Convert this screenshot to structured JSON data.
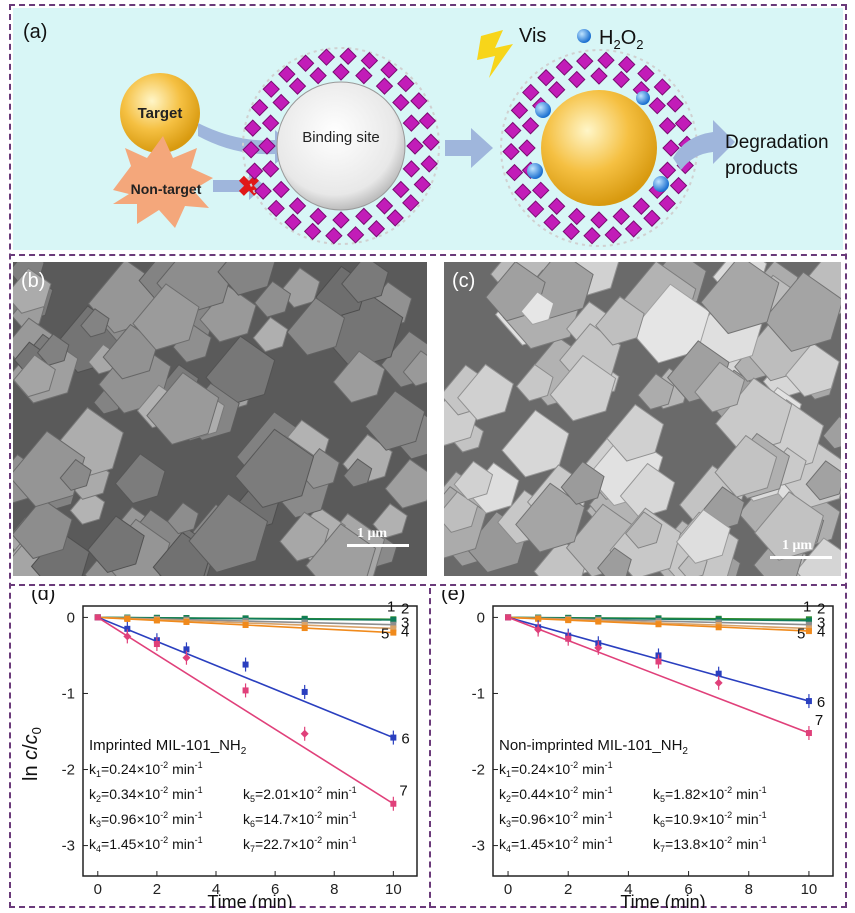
{
  "panel_a": {
    "label": "(a)",
    "target": "Target",
    "non_target": "Non-target",
    "binding_site": "Binding site",
    "vis": "Vis",
    "h2o2": "H",
    "h2o2_sub": "2",
    "h2o2_tail": "O",
    "h2o2_sub2": "2",
    "products_line1": "Degradation",
    "products_line2": "products",
    "colors": {
      "bg": "#d8f6f6",
      "mof": "#c21cb8",
      "target": "#f5c042",
      "nontarget": "#f4a77b",
      "arrow": "#9fb6dc"
    }
  },
  "panel_b": {
    "label": "(b)",
    "scale": "1 μm"
  },
  "panel_c": {
    "label": "(c)",
    "scale": "1 μm"
  },
  "chart_data": [
    {
      "type": "scatter",
      "panel": "(d)",
      "ylabel": "ln c/c0",
      "xlabel": "Time (min)",
      "xlim": [
        -0.5,
        10.8
      ],
      "ylim": [
        -3.4,
        0.15
      ],
      "xticks": [
        "0",
        "2",
        "4",
        "6",
        "8",
        "10"
      ],
      "yticks": [
        "0",
        "-1",
        "-2",
        "-3"
      ],
      "title": "Imprinted MIL-101_NH",
      "title_sub": "2",
      "x": [
        0,
        1,
        2,
        3,
        5,
        7,
        10
      ],
      "series": [
        {
          "name": "1",
          "color": "#2e8b2e",
          "values": [
            0,
            -0.003,
            -0.005,
            -0.008,
            -0.012,
            -0.018,
            -0.025
          ]
        },
        {
          "name": "2",
          "color": "#0f7c5a",
          "values": [
            0,
            -0.004,
            -0.007,
            -0.011,
            -0.017,
            -0.024,
            -0.034
          ]
        },
        {
          "name": "3",
          "color": "#8e8e8e",
          "values": [
            0,
            -0.01,
            -0.019,
            -0.029,
            -0.048,
            -0.067,
            -0.096
          ]
        },
        {
          "name": "4",
          "color": "#d9a36a",
          "values": [
            0,
            -0.015,
            -0.029,
            -0.044,
            -0.073,
            -0.1,
            -0.145
          ]
        },
        {
          "name": "5",
          "color": "#f08a1c",
          "values": [
            0,
            -0.02,
            -0.04,
            -0.06,
            -0.1,
            -0.14,
            -0.2
          ]
        },
        {
          "name": "6",
          "color": "#2a3fbf",
          "values": [
            0,
            -0.15,
            -0.3,
            -0.42,
            -0.62,
            -0.98,
            -1.58
          ]
        },
        {
          "name": "7",
          "color": "#e0407a",
          "values": [
            0,
            -0.25,
            -0.35,
            -0.53,
            -0.96,
            -1.53,
            -2.45
          ]
        }
      ],
      "k_values": [
        {
          "k": "k",
          "sub": "1",
          "val": "=0.24×10",
          "exp": "-2",
          "unit": " min",
          "uexp": "-1"
        },
        {
          "k": "k",
          "sub": "2",
          "val": "=0.34×10",
          "exp": "-2",
          "unit": " min",
          "uexp": "-1"
        },
        {
          "k": "k",
          "sub": "3",
          "val": "=0.96×10",
          "exp": "-2",
          "unit": " min",
          "uexp": "-1"
        },
        {
          "k": "k",
          "sub": "4",
          "val": "=1.45×10",
          "exp": "-2",
          "unit": " min",
          "uexp": "-1"
        },
        {
          "k": "k",
          "sub": "5",
          "val": "=2.01×10",
          "exp": "-2",
          "unit": " min",
          "uexp": "-1"
        },
        {
          "k": "k",
          "sub": "6",
          "val": "=14.7×10",
          "exp": "-2",
          "unit": " min",
          "uexp": "-1"
        },
        {
          "k": "k",
          "sub": "7",
          "val": "=22.7×10",
          "exp": "-2",
          "unit": " min",
          "uexp": "-1"
        }
      ]
    },
    {
      "type": "scatter",
      "panel": "(e)",
      "ylabel": "",
      "xlabel": "Time (min)",
      "xlim": [
        -0.5,
        10.8
      ],
      "ylim": [
        -3.4,
        0.15
      ],
      "xticks": [
        "0",
        "2",
        "4",
        "6",
        "8",
        "10"
      ],
      "yticks": [
        "0",
        "-1",
        "-2",
        "-3"
      ],
      "title": "Non-imprinted MIL-101_NH",
      "title_sub": "2",
      "x": [
        0,
        1,
        2,
        3,
        5,
        7,
        10
      ],
      "series": [
        {
          "name": "1",
          "color": "#2e8b2e",
          "values": [
            0,
            -0.003,
            -0.005,
            -0.008,
            -0.012,
            -0.018,
            -0.025
          ]
        },
        {
          "name": "2",
          "color": "#0f7c5a",
          "values": [
            0,
            -0.004,
            -0.008,
            -0.012,
            -0.02,
            -0.03,
            -0.044
          ]
        },
        {
          "name": "3",
          "color": "#8e8e8e",
          "values": [
            0,
            -0.01,
            -0.019,
            -0.029,
            -0.048,
            -0.067,
            -0.096
          ]
        },
        {
          "name": "4",
          "color": "#d9a36a",
          "values": [
            0,
            -0.015,
            -0.029,
            -0.044,
            -0.073,
            -0.1,
            -0.145
          ]
        },
        {
          "name": "5",
          "color": "#f08a1c",
          "values": [
            0,
            -0.018,
            -0.036,
            -0.055,
            -0.09,
            -0.13,
            -0.18
          ]
        },
        {
          "name": "6",
          "color": "#2a3fbf",
          "values": [
            0,
            -0.13,
            -0.24,
            -0.34,
            -0.5,
            -0.74,
            -1.1
          ]
        },
        {
          "name": "7",
          "color": "#e0407a",
          "values": [
            0,
            -0.16,
            -0.28,
            -0.4,
            -0.58,
            -0.86,
            -1.52
          ]
        }
      ],
      "k_values": [
        {
          "k": "k",
          "sub": "1",
          "val": "=0.24×10",
          "exp": "-2",
          "unit": " min",
          "uexp": "-1"
        },
        {
          "k": "k",
          "sub": "2",
          "val": "=0.44×10",
          "exp": "-2",
          "unit": " min",
          "uexp": "-1"
        },
        {
          "k": "k",
          "sub": "3",
          "val": "=0.96×10",
          "exp": "-2",
          "unit": " min",
          "uexp": "-1"
        },
        {
          "k": "k",
          "sub": "4",
          "val": "=1.45×10",
          "exp": "-2",
          "unit": " min",
          "uexp": "-1"
        },
        {
          "k": "k",
          "sub": "5",
          "val": "=1.82×10",
          "exp": "-2",
          "unit": " min",
          "uexp": "-1"
        },
        {
          "k": "k",
          "sub": "6",
          "val": "=10.9×10",
          "exp": "-2",
          "unit": " min",
          "uexp": "-1"
        },
        {
          "k": "k",
          "sub": "7",
          "val": "=13.8×10",
          "exp": "-2",
          "unit": " min",
          "uexp": "-1"
        }
      ]
    }
  ]
}
